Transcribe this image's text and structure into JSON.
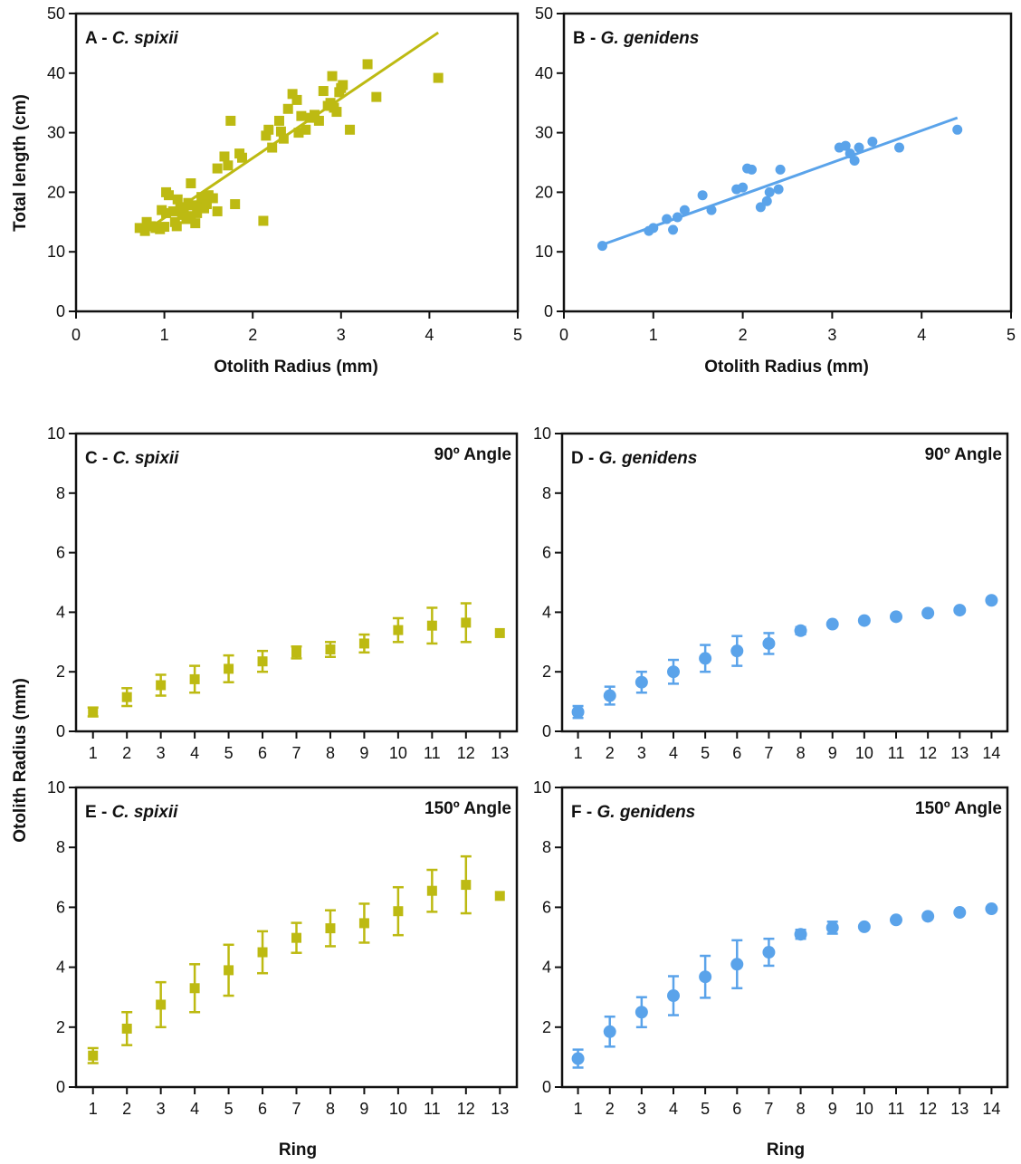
{
  "colors": {
    "c_spixii": "#BDBA12",
    "g_genidens": "#5AA3EA"
  },
  "labels": {
    "total_length": "Total length (cm)",
    "otolith_radius_y": "Otolith Radius (mm)",
    "otolith_radius_x": "Otolith Radius (mm)",
    "ring": "Ring"
  },
  "chart_data": [
    {
      "id": "A",
      "type": "scatter",
      "title_prefix": "A - ",
      "title_species": "C. spixii",
      "xlabel": "Otolith Radius (mm)",
      "ylabel": "Total length (cm)",
      "xlim": [
        0,
        5
      ],
      "ylim": [
        0,
        50
      ],
      "xticks": [
        "0",
        "1",
        "2",
        "3",
        "4",
        "5"
      ],
      "yticks": [
        "0",
        "10",
        "20",
        "30",
        "40",
        "50"
      ],
      "marker": "square",
      "color": "#BDBA12",
      "trendline": {
        "x": [
          0.75,
          4.1
        ],
        "y": [
          13.2,
          46.8
        ]
      },
      "x": [
        0.72,
        0.78,
        0.8,
        0.85,
        0.9,
        0.95,
        0.97,
        1.0,
        1.02,
        1.05,
        1.1,
        1.12,
        1.15,
        1.18,
        1.2,
        1.22,
        1.25,
        1.27,
        1.3,
        1.3,
        1.32,
        1.35,
        1.37,
        1.4,
        1.42,
        1.45,
        1.5,
        1.55,
        1.6,
        1.68,
        1.72,
        1.75,
        1.8,
        1.85,
        1.88,
        2.12,
        2.15,
        2.18,
        2.22,
        2.3,
        2.32,
        2.35,
        2.4,
        2.45,
        2.5,
        2.52,
        2.55,
        2.6,
        2.65,
        2.7,
        2.75,
        2.8,
        2.85,
        2.88,
        2.9,
        2.92,
        2.95,
        2.98,
        3.0,
        3.02,
        3.1,
        3.3,
        3.4,
        4.1,
        1.02,
        1.14,
        1.48,
        1.6
      ],
      "y": [
        14.0,
        13.5,
        15.0,
        14.3,
        14.0,
        13.8,
        17.0,
        14.2,
        20.0,
        19.5,
        16.8,
        15.0,
        18.8,
        17.2,
        16.2,
        17.5,
        15.5,
        18.2,
        21.5,
        16.0,
        17.8,
        14.8,
        16.5,
        17.8,
        19.2,
        17.3,
        19.5,
        19.0,
        24.0,
        26.0,
        24.5,
        32.0,
        18.0,
        26.5,
        25.8,
        15.2,
        29.5,
        30.5,
        27.5,
        32.0,
        30.2,
        29.0,
        34.0,
        36.5,
        35.5,
        30.0,
        32.8,
        30.5,
        32.5,
        33.0,
        32.0,
        37.0,
        34.5,
        35.0,
        39.5,
        34.2,
        33.5,
        36.8,
        37.5,
        38.0,
        30.5,
        41.5,
        36.0,
        39.2,
        16.5,
        14.3,
        18.0,
        16.8
      ]
    },
    {
      "id": "B",
      "type": "scatter",
      "title_prefix": "B - ",
      "title_species": "G. genidens",
      "xlabel": "Otolith Radius (mm)",
      "ylabel": "",
      "xlim": [
        0,
        5
      ],
      "ylim": [
        0,
        50
      ],
      "xticks": [
        "0",
        "1",
        "2",
        "3",
        "4",
        "5"
      ],
      "yticks": [
        "0",
        "10",
        "20",
        "30",
        "40",
        "50"
      ],
      "marker": "circle",
      "color": "#5AA3EA",
      "trendline": {
        "x": [
          0.45,
          4.4
        ],
        "y": [
          11.3,
          32.5
        ]
      },
      "x": [
        0.43,
        0.95,
        1.0,
        1.15,
        1.22,
        1.27,
        1.35,
        1.55,
        1.65,
        1.93,
        2.0,
        2.05,
        2.1,
        2.2,
        2.27,
        2.3,
        2.4,
        2.42,
        3.08,
        3.15,
        3.2,
        3.25,
        3.3,
        3.45,
        3.75,
        4.4
      ],
      "y": [
        11.0,
        13.5,
        14.0,
        15.5,
        13.7,
        15.8,
        17.0,
        19.5,
        17.0,
        20.5,
        20.8,
        24.0,
        23.8,
        17.5,
        18.5,
        20.0,
        20.5,
        23.8,
        27.5,
        27.8,
        26.5,
        25.3,
        27.5,
        28.5,
        27.5,
        30.5
      ]
    },
    {
      "id": "C",
      "type": "scatter",
      "title_prefix": "C - ",
      "title_species": "C. spixii",
      "angle": "90º Angle",
      "xlabel": "",
      "ylabel": "",
      "xlim": [
        0.5,
        13.5
      ],
      "ylim": [
        0,
        10
      ],
      "yticks": [
        "0",
        "2",
        "4",
        "6",
        "8",
        "10"
      ],
      "marker": "square",
      "color": "#BDBA12",
      "errorbars": true,
      "x": [
        1,
        2,
        3,
        4,
        5,
        6,
        7,
        8,
        9,
        10,
        11,
        12,
        13
      ],
      "y": [
        0.65,
        1.15,
        1.55,
        1.75,
        2.1,
        2.35,
        2.65,
        2.75,
        2.95,
        3.4,
        3.55,
        3.65,
        3.3
      ],
      "err": [
        0.15,
        0.3,
        0.35,
        0.45,
        0.45,
        0.35,
        0.2,
        0.25,
        0.3,
        0.4,
        0.6,
        0.65,
        0.0
      ]
    },
    {
      "id": "D",
      "type": "scatter",
      "title_prefix": "D - ",
      "title_species": "G. genidens",
      "angle": "90º Angle",
      "xlabel": "",
      "ylabel": "",
      "xlim": [
        0.5,
        14.5
      ],
      "ylim": [
        0,
        10
      ],
      "yticks": [
        "0",
        "2",
        "4",
        "6",
        "8",
        "10"
      ],
      "marker": "circle",
      "color": "#5AA3EA",
      "errorbars": true,
      "x": [
        1,
        2,
        3,
        4,
        5,
        6,
        7,
        8,
        9,
        10,
        11,
        12,
        13,
        14
      ],
      "y": [
        0.65,
        1.2,
        1.65,
        2.0,
        2.45,
        2.7,
        2.95,
        3.38,
        3.6,
        3.72,
        3.85,
        3.97,
        4.07,
        4.4
      ],
      "err": [
        0.2,
        0.3,
        0.35,
        0.4,
        0.45,
        0.5,
        0.35,
        0.12,
        0.0,
        0.0,
        0.0,
        0.0,
        0.0,
        0.0
      ]
    },
    {
      "id": "E",
      "type": "scatter",
      "title_prefix": "E - ",
      "title_species": "C. spixii",
      "angle": "150º Angle",
      "xlabel": "Ring",
      "ylabel": "",
      "xlim": [
        0.5,
        13.5
      ],
      "ylim": [
        0,
        10
      ],
      "yticks": [
        "0",
        "2",
        "4",
        "6",
        "8",
        "10"
      ],
      "marker": "square",
      "color": "#BDBA12",
      "errorbars": true,
      "x": [
        1,
        2,
        3,
        4,
        5,
        6,
        7,
        8,
        9,
        10,
        11,
        12,
        13
      ],
      "y": [
        1.05,
        1.95,
        2.75,
        3.3,
        3.9,
        4.5,
        4.98,
        5.3,
        5.47,
        5.87,
        6.55,
        6.75,
        6.38
      ],
      "err": [
        0.25,
        0.55,
        0.75,
        0.8,
        0.85,
        0.7,
        0.5,
        0.6,
        0.65,
        0.8,
        0.7,
        0.95,
        0.0
      ]
    },
    {
      "id": "F",
      "type": "scatter",
      "title_prefix": "F - ",
      "title_species": "G. genidens",
      "angle": "150º Angle",
      "xlabel": "Ring",
      "ylabel": "",
      "xlim": [
        0.5,
        14.5
      ],
      "ylim": [
        0,
        10
      ],
      "yticks": [
        "0",
        "2",
        "4",
        "6",
        "8",
        "10"
      ],
      "marker": "circle",
      "color": "#5AA3EA",
      "errorbars": true,
      "x": [
        1,
        2,
        3,
        4,
        5,
        6,
        7,
        8,
        9,
        10,
        11,
        12,
        13,
        14
      ],
      "y": [
        0.95,
        1.85,
        2.5,
        3.05,
        3.68,
        4.1,
        4.5,
        5.1,
        5.32,
        5.35,
        5.58,
        5.7,
        5.83,
        5.95
      ],
      "err": [
        0.3,
        0.5,
        0.5,
        0.65,
        0.7,
        0.8,
        0.45,
        0.15,
        0.2,
        0.0,
        0.0,
        0.0,
        0.0,
        0.0
      ]
    }
  ]
}
